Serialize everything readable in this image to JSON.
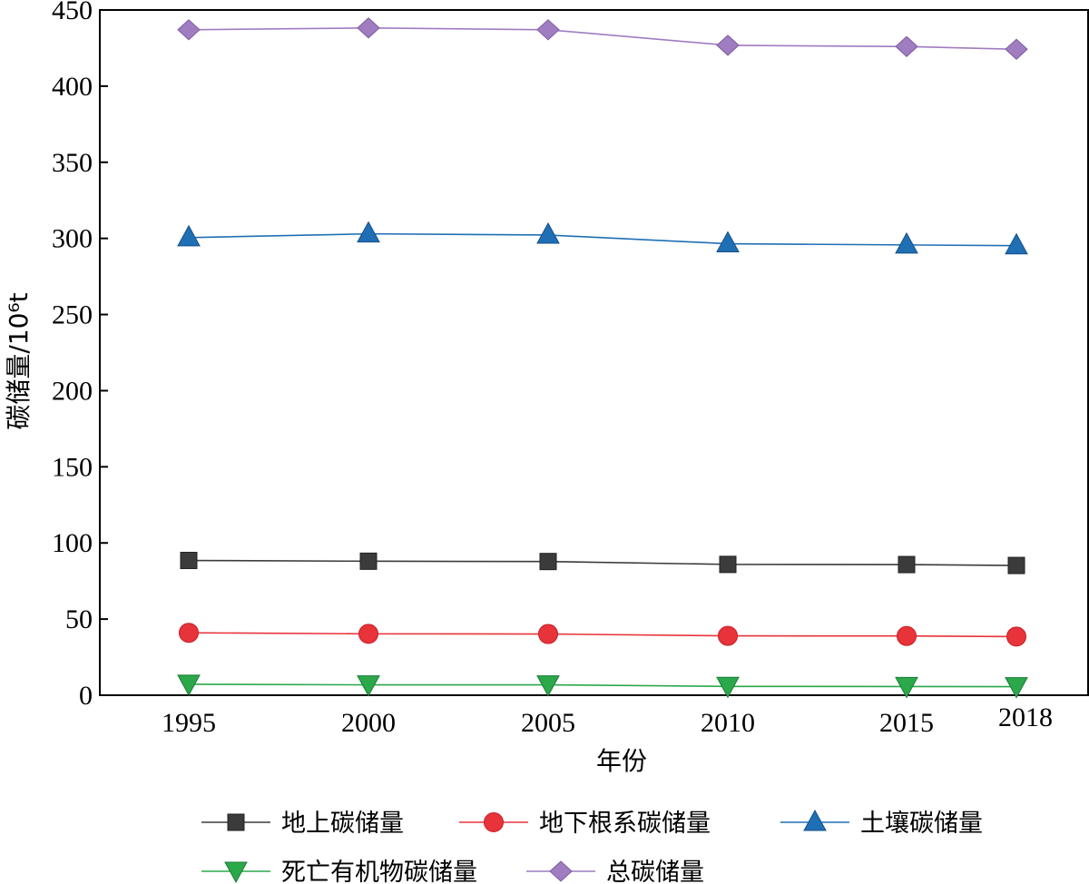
{
  "chart_data": {
    "type": "line",
    "title": "",
    "xlabel": "年份",
    "ylabel": "碳储量/10⁶t",
    "x": [
      "1995",
      "2000",
      "2005",
      "2010",
      "2015",
      "2018"
    ],
    "ylim": [
      0,
      450
    ],
    "yticks": [
      "0",
      "50",
      "100",
      "150",
      "200",
      "250",
      "300",
      "350",
      "400",
      "450"
    ],
    "grid": false,
    "legend_position": "bottom",
    "series": [
      {
        "name": "地上碳储量",
        "color": "#3b3b3b",
        "marker": "square",
        "values": [
          88.5,
          88.0,
          87.8,
          85.9,
          85.8,
          85.2
        ]
      },
      {
        "name": "地下根系碳储量",
        "color": "#e8333a",
        "marker": "circle",
        "values": [
          41.0,
          40.3,
          40.2,
          39.0,
          38.9,
          38.5
        ]
      },
      {
        "name": "土壤碳储量",
        "color": "#1f6fb5",
        "marker": "triangle-up",
        "values": [
          300.5,
          303.0,
          302.2,
          296.5,
          295.7,
          295.2
        ]
      },
      {
        "name": "死亡有机物碳储量",
        "color": "#2aa84a",
        "marker": "triangle-down",
        "values": [
          7.2,
          6.8,
          6.8,
          5.8,
          5.7,
          5.6
        ]
      },
      {
        "name": "总碳储量",
        "color": "#a07cc0",
        "marker": "diamond",
        "values": [
          437.0,
          438.2,
          437.0,
          426.8,
          426.0,
          424.2
        ]
      }
    ]
  }
}
